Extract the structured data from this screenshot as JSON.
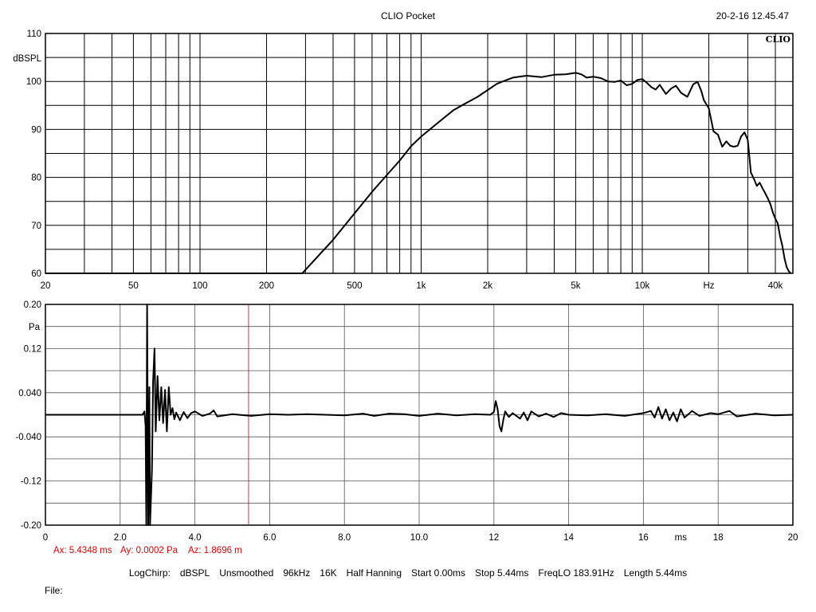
{
  "header": {
    "title": "CLIO Pocket",
    "timestamp": "20-2-16 12.45.47",
    "logo": "CLIO"
  },
  "colors": {
    "trace": "#000000",
    "grid": "#000000",
    "cursor": "#e00000"
  },
  "chart_data": [
    {
      "type": "line",
      "name": "frequency-response",
      "ylabel": "dBSPL",
      "xlabel_unit": "Hz",
      "x_scale": "log",
      "xlim": [
        20,
        48000
      ],
      "ylim": [
        60,
        110
      ],
      "y_ticks": [
        60,
        70,
        80,
        90,
        100,
        110
      ],
      "x_ticks": [
        {
          "v": 20,
          "label": "20"
        },
        {
          "v": 50,
          "label": "50"
        },
        {
          "v": 100,
          "label": "100"
        },
        {
          "v": 200,
          "label": "200"
        },
        {
          "v": 500,
          "label": "500"
        },
        {
          "v": 1000,
          "label": "1k"
        },
        {
          "v": 2000,
          "label": "2k"
        },
        {
          "v": 5000,
          "label": "5k"
        },
        {
          "v": 10000,
          "label": "10k"
        },
        {
          "v": 20000,
          "label": "Hz"
        },
        {
          "v": 40000,
          "label": "40k"
        }
      ],
      "series": [
        {
          "points": [
            [
              20,
              60
            ],
            [
              290,
              60
            ],
            [
              400,
              67
            ],
            [
              500,
              72.5
            ],
            [
              600,
              77
            ],
            [
              700,
              80.5
            ],
            [
              800,
              83.5
            ],
            [
              900,
              86.5
            ],
            [
              1000,
              88.5
            ],
            [
              1200,
              91.5
            ],
            [
              1400,
              94
            ],
            [
              1600,
              95.5
            ],
            [
              1800,
              96.8
            ],
            [
              2000,
              98.2
            ],
            [
              2200,
              99.5
            ],
            [
              2400,
              100.2
            ],
            [
              2600,
              100.8
            ],
            [
              3000,
              101.2
            ],
            [
              3500,
              100.9
            ],
            [
              4000,
              101.4
            ],
            [
              4500,
              101.5
            ],
            [
              5000,
              101.8
            ],
            [
              5300,
              101.5
            ],
            [
              5600,
              100.8
            ],
            [
              6000,
              101
            ],
            [
              6500,
              100.7
            ],
            [
              7000,
              100
            ],
            [
              7500,
              99.9
            ],
            [
              8000,
              100.2
            ],
            [
              8500,
              99.2
            ],
            [
              9000,
              99.5
            ],
            [
              9500,
              100.3
            ],
            [
              10000,
              100.5
            ],
            [
              10500,
              99.7
            ],
            [
              11000,
              98.8
            ],
            [
              11500,
              98.3
            ],
            [
              12000,
              99.3
            ],
            [
              12800,
              97.4
            ],
            [
              13500,
              98.5
            ],
            [
              14200,
              99.1
            ],
            [
              15000,
              97.6
            ],
            [
              16000,
              96.8
            ],
            [
              17000,
              99.4
            ],
            [
              17800,
              99.9
            ],
            [
              18500,
              98
            ],
            [
              19000,
              96.1
            ],
            [
              20000,
              94.4
            ],
            [
              21000,
              89.6
            ],
            [
              22000,
              88.9
            ],
            [
              23000,
              86.4
            ],
            [
              24000,
              87.5
            ],
            [
              25000,
              86.6
            ],
            [
              26000,
              86.4
            ],
            [
              27000,
              86.6
            ],
            [
              28000,
              88.5
            ],
            [
              29000,
              89.4
            ],
            [
              30000,
              87.8
            ],
            [
              31000,
              81
            ],
            [
              32000,
              79.7
            ],
            [
              33000,
              78.2
            ],
            [
              34000,
              78.9
            ],
            [
              35000,
              77.7
            ],
            [
              36000,
              76.7
            ],
            [
              37000,
              75.6
            ],
            [
              38000,
              74.4
            ],
            [
              39000,
              72.6
            ],
            [
              40000,
              71.4
            ],
            [
              41000,
              70.4
            ],
            [
              42000,
              67.7
            ],
            [
              43000,
              65.8
            ],
            [
              44000,
              63.1
            ],
            [
              45000,
              61.3
            ],
            [
              46000,
              60.4
            ],
            [
              47000,
              60
            ]
          ]
        }
      ]
    },
    {
      "type": "line",
      "name": "impulse-response",
      "ylabel": "Pa",
      "xlabel_unit": "ms",
      "xlim": [
        0,
        20
      ],
      "ylim": [
        -0.2,
        0.2
      ],
      "y_ticks": [
        {
          "v": 0.2,
          "label": "0.20"
        },
        {
          "v": 0.12,
          "label": "0.12"
        },
        {
          "v": 0.04,
          "label": "0.040"
        },
        {
          "v": -0.04,
          "label": "-0.040"
        },
        {
          "v": -0.12,
          "label": "-0.12"
        },
        {
          "v": -0.2,
          "label": "-0.20"
        }
      ],
      "y_grid": [
        0.2,
        0.16,
        0.12,
        0.08,
        0.04,
        0.0,
        -0.04,
        -0.08,
        -0.12,
        -0.16,
        -0.2
      ],
      "x_ticks": [
        {
          "v": 0,
          "label": "0"
        },
        {
          "v": 2,
          "label": "2.0"
        },
        {
          "v": 4,
          "label": "4.0"
        },
        {
          "v": 6,
          "label": "6.0"
        },
        {
          "v": 8,
          "label": "8.0"
        },
        {
          "v": 10,
          "label": "10.0"
        },
        {
          "v": 12,
          "label": "12"
        },
        {
          "v": 14,
          "label": "14"
        },
        {
          "v": 16,
          "label": "16"
        },
        {
          "v": 18,
          "label": "18"
        },
        {
          "v": 20,
          "label": "20"
        }
      ],
      "cursor_x": 5.4348,
      "series": [
        {
          "points": [
            [
              0,
              0.0
            ],
            [
              2.6,
              0.0
            ],
            [
              2.65,
              0.006
            ],
            [
              2.68,
              -0.02
            ],
            [
              2.7,
              -0.2
            ],
            [
              2.72,
              0.2
            ],
            [
              2.75,
              -0.2
            ],
            [
              2.78,
              0.05
            ],
            [
              2.8,
              -0.2
            ],
            [
              2.85,
              -0.1
            ],
            [
              2.88,
              0.06
            ],
            [
              2.92,
              0.12
            ],
            [
              2.95,
              -0.03
            ],
            [
              3.0,
              0.07
            ],
            [
              3.05,
              -0.01
            ],
            [
              3.1,
              0.05
            ],
            [
              3.15,
              -0.015
            ],
            [
              3.2,
              0.045
            ],
            [
              3.25,
              -0.03
            ],
            [
              3.3,
              0.05
            ],
            [
              3.35,
              0.0
            ],
            [
              3.4,
              0.012
            ],
            [
              3.45,
              -0.008
            ],
            [
              3.5,
              0.004
            ],
            [
              3.6,
              -0.01
            ],
            [
              3.7,
              0.005
            ],
            [
              3.8,
              -0.006
            ],
            [
              3.9,
              0.003
            ],
            [
              4.0,
              0.006
            ],
            [
              4.2,
              -0.002
            ],
            [
              4.4,
              0.002
            ],
            [
              4.5,
              0.008
            ],
            [
              4.6,
              -0.003
            ],
            [
              5.0,
              0.001
            ],
            [
              5.5,
              -0.002
            ],
            [
              6.0,
              0.001
            ],
            [
              6.5,
              0.0
            ],
            [
              7.0,
              0.001
            ],
            [
              7.5,
              0.0
            ],
            [
              8.0,
              -0.001
            ],
            [
              8.5,
              0.002
            ],
            [
              8.8,
              -0.002
            ],
            [
              9.2,
              0.002
            ],
            [
              9.6,
              0.001
            ],
            [
              10.0,
              -0.002
            ],
            [
              10.5,
              0.002
            ],
            [
              11.0,
              -0.001
            ],
            [
              11.5,
              0.001
            ],
            [
              11.9,
              0.0
            ],
            [
              12.0,
              0.005
            ],
            [
              12.05,
              0.025
            ],
            [
              12.1,
              0.01
            ],
            [
              12.15,
              -0.02
            ],
            [
              12.2,
              -0.03
            ],
            [
              12.25,
              -0.01
            ],
            [
              12.3,
              0.006
            ],
            [
              12.4,
              -0.004
            ],
            [
              12.5,
              0.003
            ],
            [
              12.7,
              -0.007
            ],
            [
              12.8,
              0.004
            ],
            [
              12.9,
              -0.01
            ],
            [
              13.0,
              0.006
            ],
            [
              13.2,
              -0.003
            ],
            [
              13.4,
              0.002
            ],
            [
              13.6,
              -0.004
            ],
            [
              13.8,
              0.003
            ],
            [
              14.0,
              0.0
            ],
            [
              14.5,
              -0.001
            ],
            [
              15.0,
              0.001
            ],
            [
              15.5,
              -0.002
            ],
            [
              16.0,
              0.003
            ],
            [
              16.2,
              0.007
            ],
            [
              16.3,
              -0.005
            ],
            [
              16.4,
              0.014
            ],
            [
              16.5,
              -0.007
            ],
            [
              16.6,
              0.01
            ],
            [
              16.7,
              -0.01
            ],
            [
              16.8,
              0.004
            ],
            [
              16.9,
              -0.012
            ],
            [
              17.0,
              0.01
            ],
            [
              17.1,
              -0.005
            ],
            [
              17.3,
              0.007
            ],
            [
              17.5,
              -0.002
            ],
            [
              17.8,
              0.003
            ],
            [
              18.0,
              0.001
            ],
            [
              18.3,
              0.007
            ],
            [
              18.5,
              -0.003
            ],
            [
              19.0,
              0.002
            ],
            [
              19.5,
              -0.001
            ],
            [
              20.0,
              0.0
            ]
          ]
        }
      ]
    }
  ],
  "cursor": {
    "ax": "Ax: 5.4348 ms",
    "ay": "Ay: 0.0002 Pa",
    "az": "Az: 1.8696 m"
  },
  "settings": {
    "mode": "LogChirp:",
    "units": "dBSPL",
    "smoothing": "Unsmoothed",
    "sample_rate": "96kHz",
    "size": "16K",
    "window": "Half Hanning",
    "start": "Start 0.00ms",
    "stop": "Stop 5.44ms",
    "freq_lo": "FreqLO 183.91Hz",
    "length": "Length 5.44ms"
  },
  "file": "File:"
}
